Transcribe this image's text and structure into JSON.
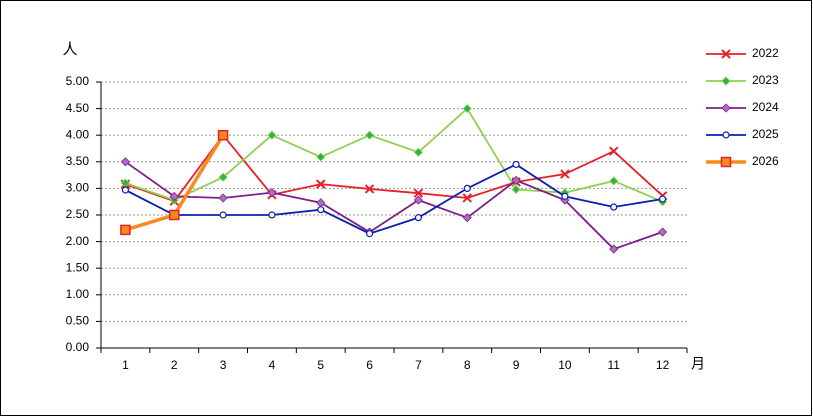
{
  "chart_data": {
    "type": "line",
    "y_label": "人",
    "x_label": "月",
    "categories": [
      "1",
      "2",
      "3",
      "4",
      "5",
      "6",
      "7",
      "8",
      "9",
      "10",
      "11",
      "12"
    ],
    "series": [
      {
        "name": "2022",
        "color": "#e8202a",
        "marker": "x",
        "values": [
          3.08,
          2.76,
          4.0,
          2.88,
          3.08,
          2.99,
          2.91,
          2.82,
          3.12,
          3.27,
          3.7,
          2.86
        ]
      },
      {
        "name": "2023",
        "color": "#8fd14f",
        "marker": "diamond",
        "markerColor": "#2db34a",
        "values": [
          3.1,
          2.78,
          3.21,
          4.0,
          3.59,
          4.0,
          3.68,
          4.5,
          2.98,
          2.92,
          3.14,
          2.75
        ]
      },
      {
        "name": "2024",
        "color": "#7b1f8c",
        "marker": "diamond",
        "markerColor": "#b06cc0",
        "values": [
          3.5,
          2.85,
          2.82,
          2.92,
          2.73,
          2.18,
          2.78,
          2.45,
          3.15,
          2.78,
          1.86,
          2.18
        ]
      },
      {
        "name": "2025",
        "color": "#0a1fb0",
        "marker": "circle",
        "values": [
          2.97,
          2.5,
          2.5,
          2.5,
          2.6,
          2.15,
          2.45,
          3.0,
          3.45,
          2.85,
          2.65,
          2.8
        ]
      },
      {
        "name": "2026",
        "color": "#f7891e",
        "marker": "square",
        "markerColor": "#e8202a",
        "width": 3.5,
        "values": [
          2.22,
          2.5,
          4.0,
          null,
          null,
          null,
          null,
          null,
          null,
          null,
          null,
          null
        ]
      }
    ],
    "ylim": [
      0,
      5
    ],
    "yticks": [
      {
        "value": 0,
        "label": "0.00"
      },
      {
        "value": 0.5,
        "label": "0.50"
      },
      {
        "value": 1,
        "label": "1.00"
      },
      {
        "value": 1.5,
        "label": "1.50"
      },
      {
        "value": 2,
        "label": "2.00"
      },
      {
        "value": 2.5,
        "label": "2.50"
      },
      {
        "value": 3,
        "label": "3.00"
      },
      {
        "value": 3.5,
        "label": "3.50"
      },
      {
        "value": 4,
        "label": "4.00"
      },
      {
        "value": 4.5,
        "label": "4.50"
      },
      {
        "value": 5,
        "label": "5.00"
      }
    ],
    "grid": true,
    "legend": "right"
  }
}
